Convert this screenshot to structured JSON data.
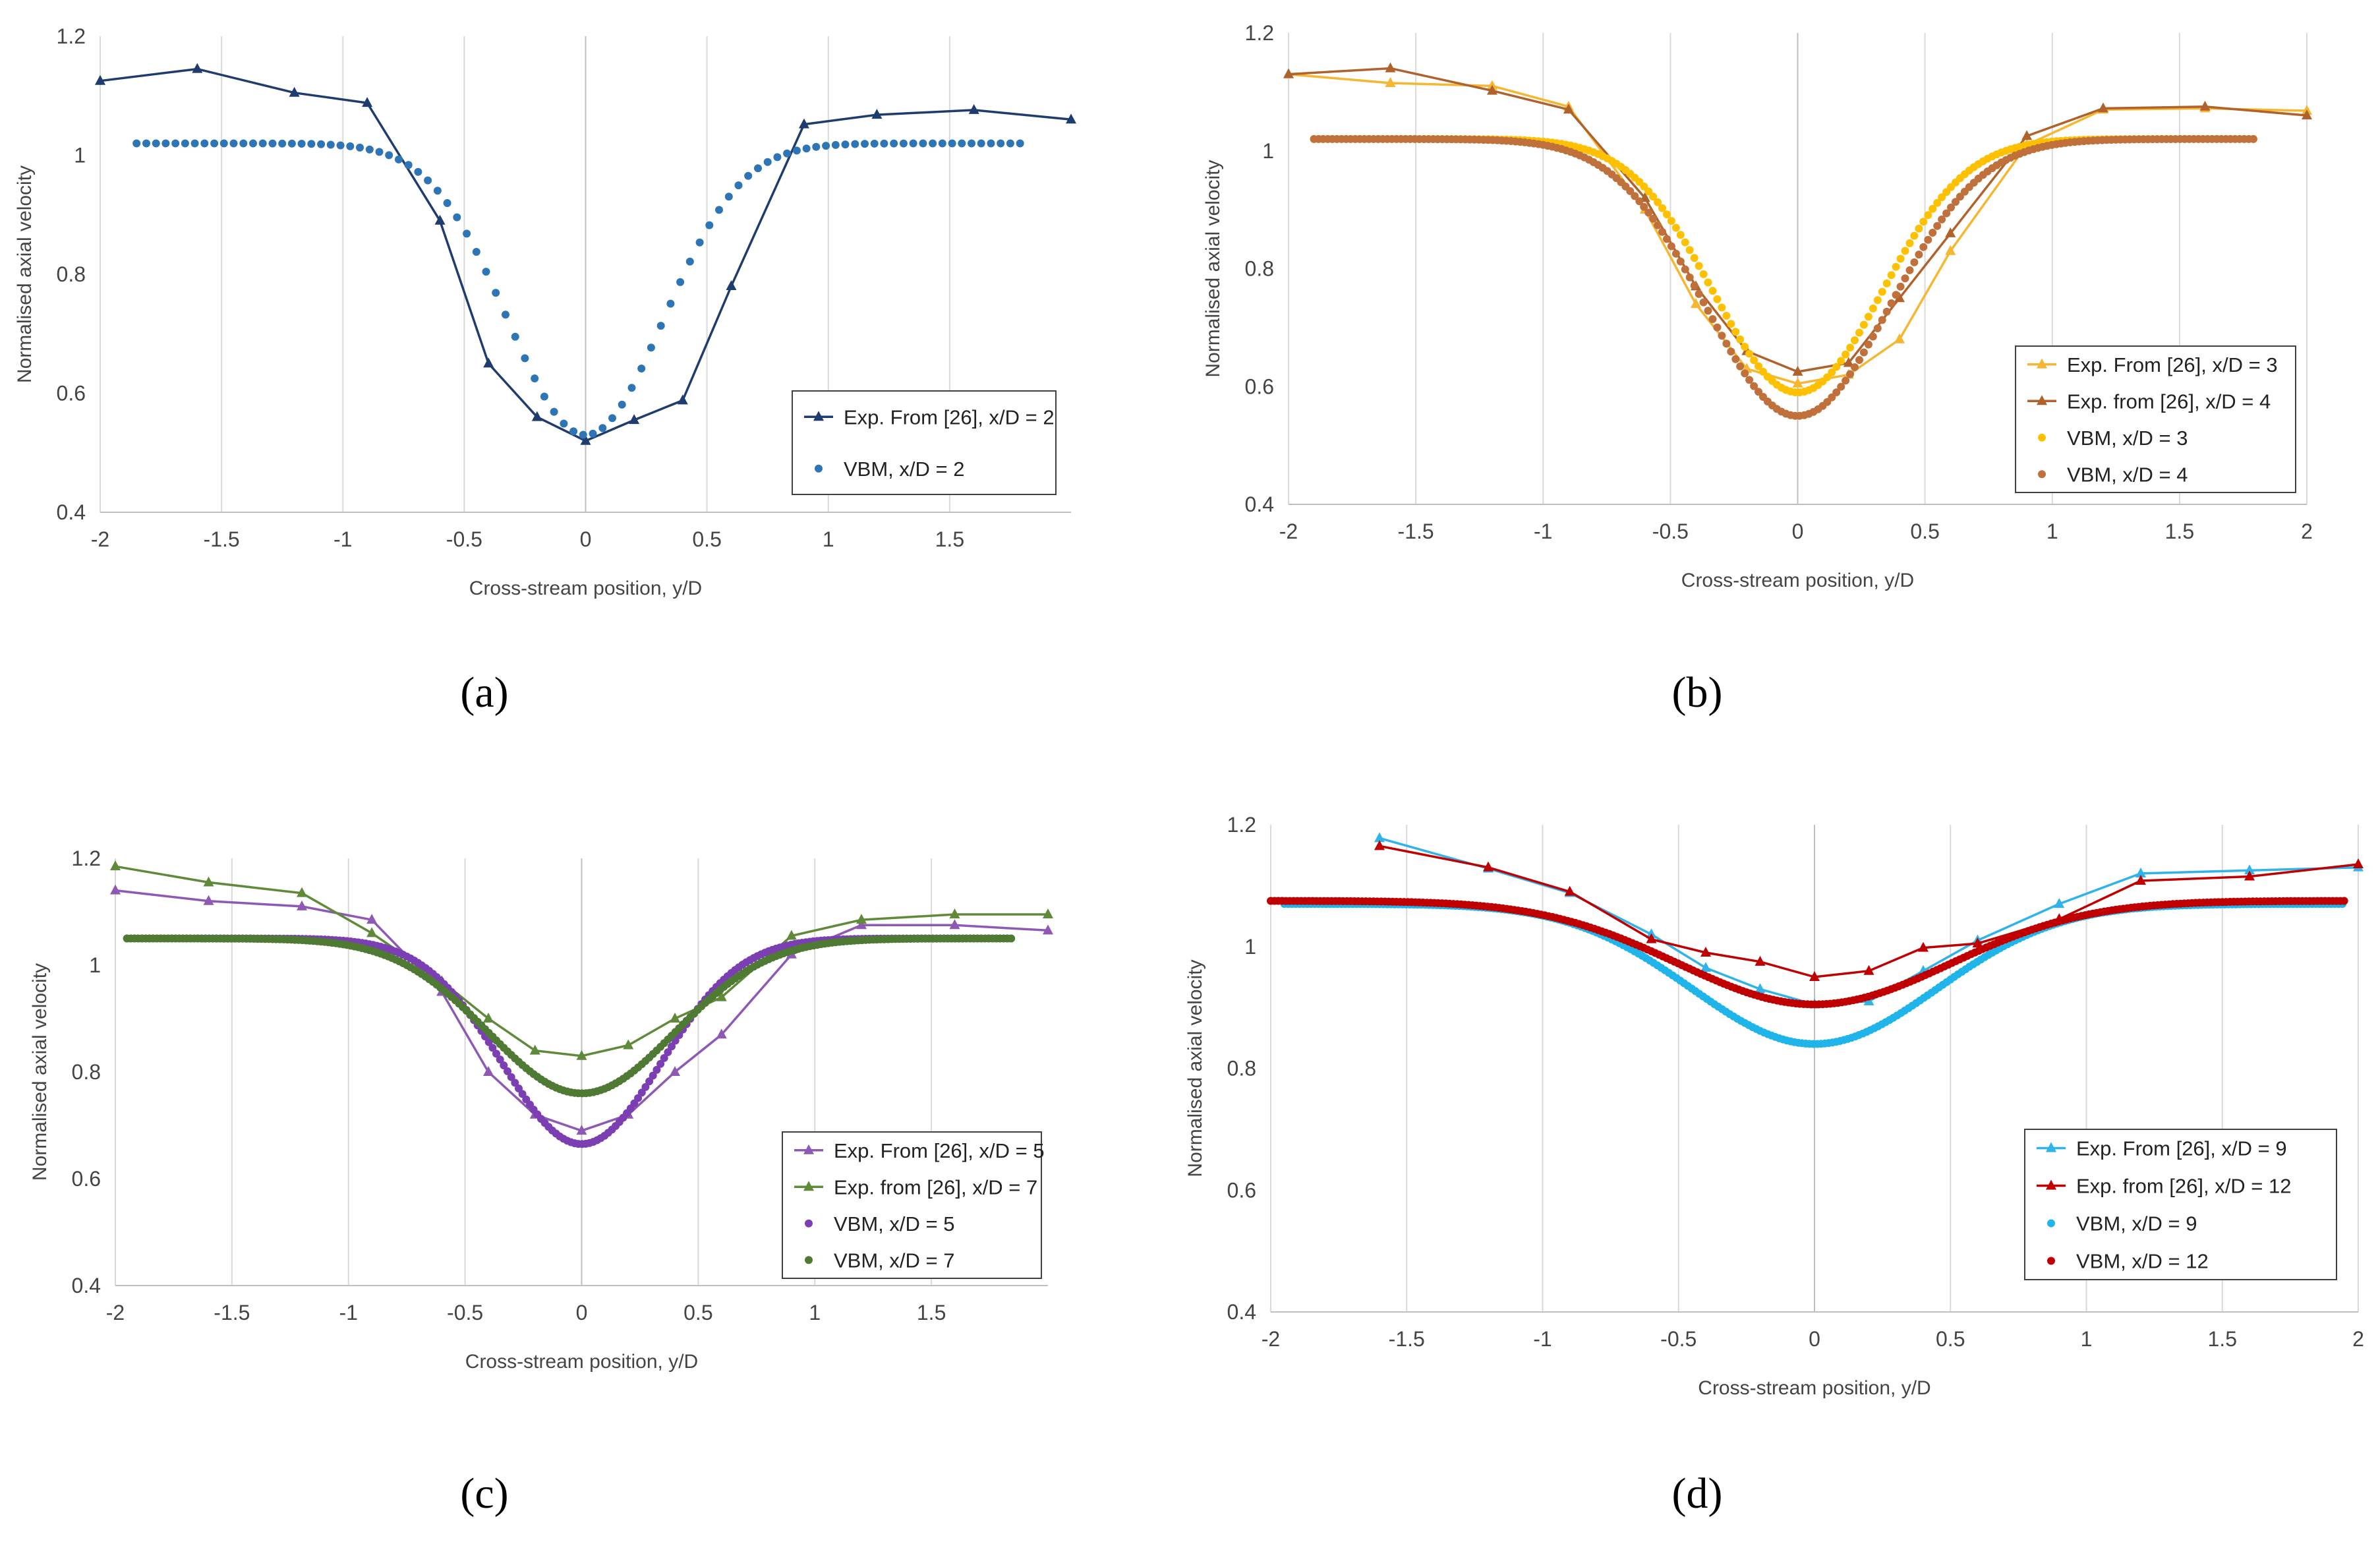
{
  "chart_data": [
    {
      "type": "line",
      "panel_label": "(a)",
      "xlabel": "Cross-stream position, y/D",
      "ylabel": "Normalised axial velocity",
      "xlim": [
        -2,
        2
      ],
      "ylim": [
        0.4,
        1.2
      ],
      "xticks": [
        "-2",
        "-1.5",
        "-1",
        "-0.5",
        "0",
        "0.5",
        "1",
        "1.5"
      ],
      "yticks": [
        "0.4",
        "0.6",
        "0.8",
        "1",
        "1.2"
      ],
      "grid": "vertical",
      "legend_position": "bottom-right",
      "series": [
        {
          "name": "Exp. From [26], x/D = 2",
          "kind": "exp",
          "color": "#1f3c6e",
          "x": [
            -2.0,
            -1.6,
            -1.2,
            -0.9,
            -0.6,
            -0.4,
            -0.2,
            0.0,
            0.2,
            0.4,
            0.6,
            0.9,
            1.2,
            1.6,
            2.0
          ],
          "y": [
            1.125,
            1.145,
            1.105,
            1.088,
            0.89,
            0.65,
            0.56,
            0.52,
            0.555,
            0.588,
            0.78,
            1.052,
            1.068,
            1.076,
            1.06
          ]
        },
        {
          "name": "VBM, x/D = 2",
          "kind": "model",
          "color": "#2e75b6",
          "shape": "gauss",
          "base": 1.02,
          "min": 0.53,
          "sigma": 0.32,
          "xmin": -1.85,
          "xmax": 1.8,
          "step": 0.04
        }
      ]
    },
    {
      "type": "line",
      "panel_label": "(b)",
      "xlabel": "Cross-stream position, y/D",
      "ylabel": "Normalised axial velocity",
      "xlim": [
        -2,
        2
      ],
      "ylim": [
        0.4,
        1.2
      ],
      "xticks": [
        "-2",
        "-1.5",
        "-1",
        "-0.5",
        "0",
        "0.5",
        "1",
        "1.5",
        "2"
      ],
      "yticks": [
        "0.4",
        "0.6",
        "0.8",
        "1",
        "1.2"
      ],
      "grid": "vertical",
      "legend_position": "bottom-right",
      "series": [
        {
          "name": "Exp. From [26], x/D = 3",
          "kind": "exp",
          "color": "#f5b731",
          "x": [
            -2.0,
            -1.6,
            -1.2,
            -0.9,
            -0.6,
            -0.4,
            -0.2,
            0.0,
            0.2,
            0.4,
            0.6,
            0.9,
            1.2,
            1.6,
            2.0
          ],
          "y": [
            1.13,
            1.115,
            1.11,
            1.075,
            0.9,
            0.74,
            0.63,
            0.605,
            0.62,
            0.68,
            0.83,
            1.01,
            1.07,
            1.072,
            1.068
          ]
        },
        {
          "name": "Exp. from [26], x/D = 4",
          "kind": "exp",
          "color": "#b0622d",
          "x": [
            -2.0,
            -1.6,
            -1.2,
            -0.9,
            -0.6,
            -0.4,
            -0.2,
            0.0,
            0.2,
            0.4,
            0.6,
            0.9,
            1.2,
            1.6,
            2.0
          ],
          "y": [
            1.13,
            1.14,
            1.102,
            1.07,
            0.92,
            0.77,
            0.66,
            0.625,
            0.64,
            0.75,
            0.86,
            1.025,
            1.072,
            1.075,
            1.06
          ]
        },
        {
          "name": "VBM, x/D = 3",
          "kind": "model",
          "color": "#ffc000",
          "shape": "gauss",
          "base": 1.02,
          "min": 0.59,
          "sigma": 0.33,
          "xmin": -1.9,
          "xmax": 1.8,
          "step": 0.018
        },
        {
          "name": "VBM, x/D = 4",
          "kind": "model",
          "color": "#c0703a",
          "shape": "gauss",
          "base": 1.02,
          "min": 0.55,
          "sigma": 0.36,
          "xmin": -1.9,
          "xmax": 1.8,
          "step": 0.018
        }
      ]
    },
    {
      "type": "line",
      "panel_label": "(c)",
      "xlabel": "Cross-stream position, y/D",
      "ylabel": "Normalised axial velocity",
      "xlim": [
        -2,
        2
      ],
      "ylim": [
        0.4,
        1.2
      ],
      "xticks": [
        "-2",
        "-1.5",
        "-1",
        "-0.5",
        "0",
        "0.5",
        "1",
        "1.5"
      ],
      "yticks": [
        "0.4",
        "0.6",
        "0.8",
        "1",
        "1.2"
      ],
      "grid": "vertical",
      "legend_position": "bottom-right",
      "series": [
        {
          "name": "Exp. From [26], x/D = 5",
          "kind": "exp",
          "color": "#8e59b4",
          "x": [
            -2.0,
            -1.6,
            -1.2,
            -0.9,
            -0.6,
            -0.4,
            -0.2,
            0.0,
            0.2,
            0.4,
            0.6,
            0.9,
            1.2,
            1.6,
            2.0
          ],
          "y": [
            1.14,
            1.12,
            1.11,
            1.085,
            0.95,
            0.8,
            0.72,
            0.69,
            0.72,
            0.8,
            0.87,
            1.02,
            1.075,
            1.075,
            1.065
          ]
        },
        {
          "name": "Exp. from [26], x/D = 7",
          "kind": "exp",
          "color": "#5f8a3a",
          "x": [
            -2.0,
            -1.6,
            -1.2,
            -0.9,
            -0.6,
            -0.4,
            -0.2,
            0.0,
            0.2,
            0.4,
            0.6,
            0.9,
            1.2,
            1.6,
            2.0
          ],
          "y": [
            1.185,
            1.155,
            1.135,
            1.06,
            0.97,
            0.9,
            0.84,
            0.83,
            0.85,
            0.9,
            0.94,
            1.055,
            1.085,
            1.095,
            1.095
          ]
        },
        {
          "name": "VBM, x/D = 5",
          "kind": "model",
          "color": "#7b3fb3",
          "shape": "gauss",
          "base": 1.05,
          "min": 0.665,
          "sigma": 0.34,
          "xmin": -1.95,
          "xmax": 1.85,
          "step": 0.016
        },
        {
          "name": "VBM, x/D = 7",
          "kind": "model",
          "color": "#4f7a34",
          "shape": "gauss",
          "base": 1.05,
          "min": 0.76,
          "sigma": 0.4,
          "xmin": -1.95,
          "xmax": 1.85,
          "step": 0.016
        }
      ]
    },
    {
      "type": "line",
      "panel_label": "(d)",
      "xlabel": "Cross-stream position, y/D",
      "ylabel": "Normalised axial velocity",
      "xlim": [
        -2,
        2
      ],
      "ylim": [
        0.4,
        1.2
      ],
      "xticks": [
        "-2",
        "-1.5",
        "-1",
        "-0.5",
        "0",
        "0.5",
        "1",
        "1.5",
        "2"
      ],
      "yticks": [
        "0.4",
        "0.6",
        "0.8",
        "1",
        "1.2"
      ],
      "grid": "vertical",
      "legend_position": "bottom-right",
      "series": [
        {
          "name": "Exp. From [26], x/D = 9",
          "kind": "exp",
          "color": "#2fb3e8",
          "x": [
            -1.6,
            -1.2,
            -0.9,
            -0.6,
            -0.4,
            -0.2,
            0.0,
            0.2,
            0.4,
            0.6,
            0.9,
            1.2,
            1.6,
            2.0
          ],
          "y": [
            1.178,
            1.128,
            1.088,
            1.02,
            0.965,
            0.93,
            0.905,
            0.91,
            0.96,
            1.01,
            1.07,
            1.12,
            1.125,
            1.13
          ]
        },
        {
          "name": "Exp. from [26], x/D = 12",
          "kind": "exp",
          "color": "#c00000",
          "x": [
            -1.6,
            -1.2,
            -0.9,
            -0.6,
            -0.4,
            -0.2,
            0.0,
            0.2,
            0.4,
            0.6,
            0.9,
            1.2,
            1.6,
            2.0
          ],
          "y": [
            1.165,
            1.13,
            1.09,
            1.012,
            0.99,
            0.975,
            0.95,
            0.96,
            0.998,
            1.005,
            1.045,
            1.108,
            1.115,
            1.135
          ]
        },
        {
          "name": "VBM, x/D = 9",
          "kind": "model",
          "color": "#1fb4ea",
          "shape": "gauss",
          "base": 1.07,
          "min": 0.84,
          "sigma": 0.45,
          "xmin": -1.95,
          "xmax": 1.95,
          "step": 0.014
        },
        {
          "name": "VBM, x/D = 12",
          "kind": "model",
          "color": "#c00000",
          "shape": "gauss",
          "base": 1.075,
          "min": 0.905,
          "sigma": 0.5,
          "xmin": -2.0,
          "xmax": 1.95,
          "step": 0.014
        }
      ]
    }
  ]
}
